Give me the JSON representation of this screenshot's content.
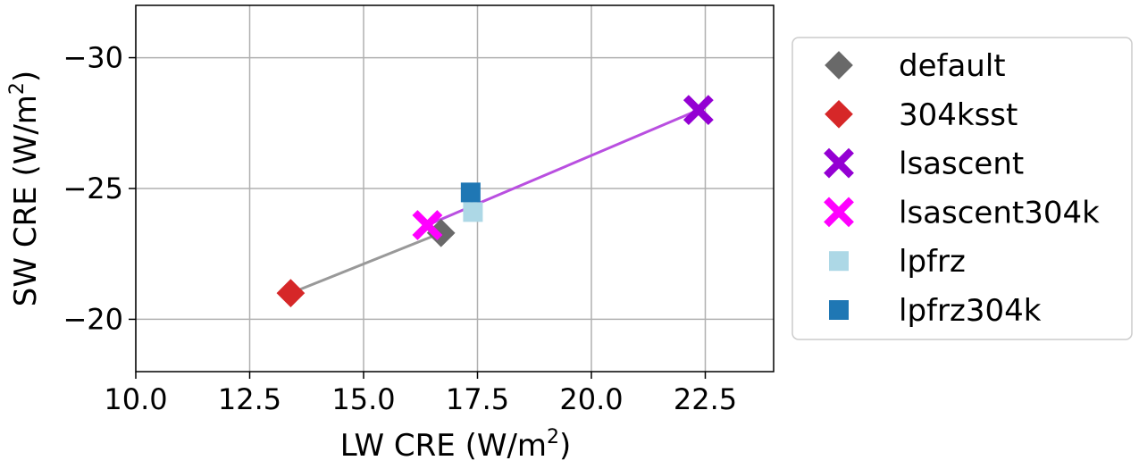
{
  "chart_data": {
    "type": "scatter",
    "xlabel": "LW CRE (W/m",
    "xlabel_sup": "2",
    "xlabel_end": ")",
    "ylabel": "SW CRE (W/m",
    "ylabel_sup": "2",
    "ylabel_end": ")",
    "xlim": [
      10.0,
      24.0
    ],
    "ylim": [
      -18.0,
      -32.0
    ],
    "y_inverted": true,
    "grid": true,
    "legend_position": "outside-right",
    "xticks": [
      10.0,
      12.5,
      15.0,
      17.5,
      20.0,
      22.5
    ],
    "xtick_labels": [
      "10.0",
      "12.5",
      "15.0",
      "17.5",
      "20.0",
      "22.5"
    ],
    "yticks": [
      -30,
      -25,
      -20
    ],
    "ytick_labels": [
      "−30",
      "−25",
      "−20"
    ],
    "series": [
      {
        "name": "default",
        "marker": "diamond",
        "color": "#696969",
        "x": 16.7,
        "y": -23.3
      },
      {
        "name": "304ksst",
        "marker": "diamond",
        "color": "#d62728",
        "x": 13.4,
        "y": -21.0
      },
      {
        "name": "lsascent",
        "marker": "x",
        "color": "#9400d3",
        "x": 22.35,
        "y": -28.0
      },
      {
        "name": "lsascent304k",
        "marker": "x",
        "color": "#ff00ff",
        "x": 16.4,
        "y": -23.6
      },
      {
        "name": "lpfrz",
        "marker": "square",
        "color": "#add8e6",
        "x": 17.4,
        "y": -24.1
      },
      {
        "name": "lpfrz304k",
        "marker": "square",
        "color": "#1f77b4",
        "x": 17.35,
        "y": -24.85
      }
    ],
    "connectors": [
      {
        "from": "304ksst",
        "to": "default",
        "color": "#999999"
      },
      {
        "from": "lsascent304k",
        "to": "lsascent",
        "color": "#b94fe0"
      },
      {
        "from": "lpfrz",
        "to": "lpfrz304k",
        "color": "#9fcbe0"
      }
    ]
  }
}
